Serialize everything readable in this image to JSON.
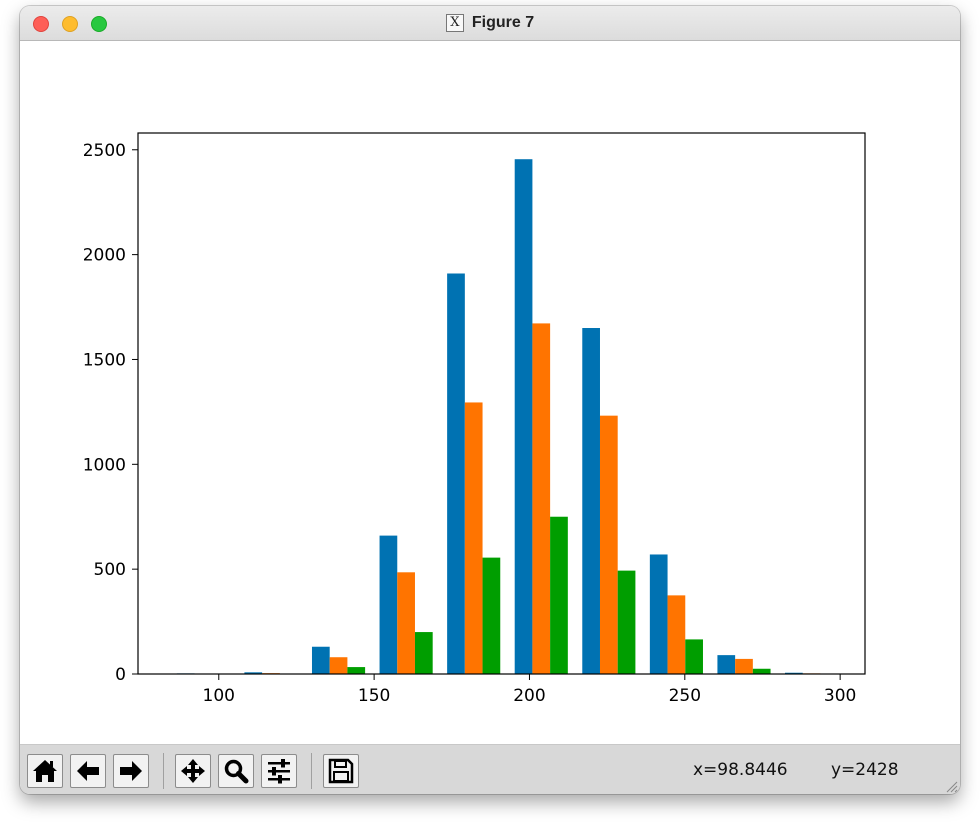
{
  "window": {
    "title": "Figure 7"
  },
  "toolbar": {
    "buttons": [
      {
        "name": "home-button",
        "icon": "home-icon"
      },
      {
        "name": "back-button",
        "icon": "arrow-left-icon"
      },
      {
        "name": "forward-button",
        "icon": "arrow-right-icon"
      },
      {
        "name": "pan-button",
        "icon": "move-icon"
      },
      {
        "name": "zoom-button",
        "icon": "magnifier-icon"
      },
      {
        "name": "configure-subplots-button",
        "icon": "sliders-icon"
      },
      {
        "name": "save-button",
        "icon": "floppy-disk-icon"
      }
    ],
    "x_readout": "x=98.8446",
    "y_readout": "y=2428"
  },
  "chart_data": {
    "type": "bar",
    "title": "",
    "xlabel": "",
    "ylabel": "",
    "xlim": [
      74,
      308
    ],
    "ylim": [
      0,
      2580
    ],
    "xticks": [
      100,
      150,
      200,
      250,
      300
    ],
    "yticks": [
      0,
      500,
      1000,
      1500,
      2000,
      2500
    ],
    "bin_edges": [
      86.5,
      108.25,
      130,
      151.75,
      173.5,
      195.25,
      217,
      238.75,
      260.5,
      282.25
    ],
    "bar_width": 5.7,
    "series_colors": [
      "#0072b2",
      "#ff7400",
      "#009e00"
    ],
    "series": [
      {
        "values": [
          3,
          8,
          130,
          660,
          1910,
          2455,
          1650,
          570,
          90,
          6
        ]
      },
      {
        "values": [
          0,
          4,
          80,
          485,
          1295,
          1672,
          1232,
          375,
          72,
          3
        ]
      },
      {
        "values": [
          0,
          1,
          33,
          200,
          555,
          750,
          493,
          165,
          25,
          1
        ]
      }
    ]
  }
}
